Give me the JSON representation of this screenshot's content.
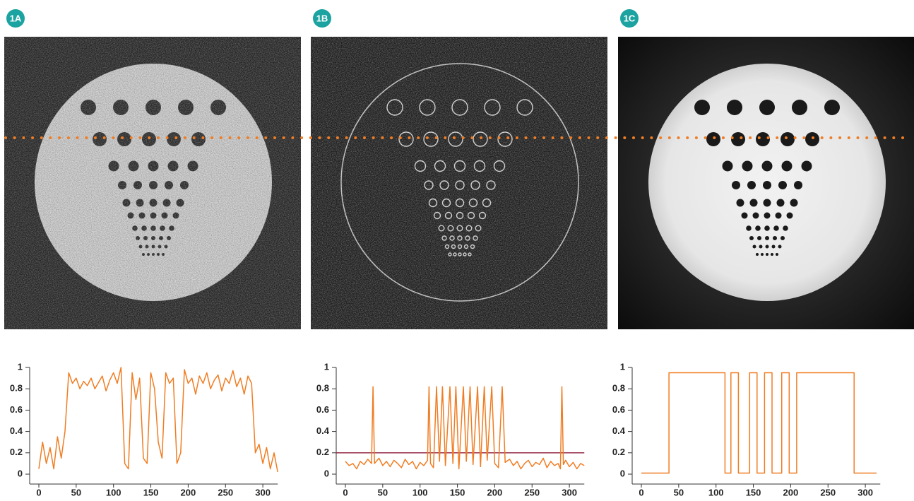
{
  "chart_data": [
    {
      "type": "line",
      "title": "1A",
      "color": "#f07d23",
      "x": [
        0,
        5,
        10,
        15,
        20,
        25,
        30,
        35,
        40,
        45,
        50,
        55,
        60,
        65,
        70,
        75,
        80,
        85,
        90,
        95,
        100,
        105,
        110,
        115,
        120,
        125,
        130,
        135,
        140,
        145,
        150,
        155,
        160,
        165,
        170,
        175,
        180,
        185,
        190,
        195,
        200,
        205,
        210,
        215,
        220,
        225,
        230,
        235,
        240,
        245,
        250,
        255,
        260,
        265,
        270,
        275,
        280,
        285,
        290,
        295,
        300,
        305,
        310,
        315,
        320
      ],
      "values": [
        0.05,
        0.3,
        0.1,
        0.25,
        0.05,
        0.35,
        0.15,
        0.4,
        0.95,
        0.85,
        0.9,
        0.8,
        0.87,
        0.83,
        0.9,
        0.8,
        0.86,
        0.92,
        0.78,
        0.88,
        0.95,
        0.85,
        1.0,
        0.1,
        0.05,
        0.95,
        0.7,
        0.9,
        0.15,
        0.1,
        0.95,
        0.8,
        0.3,
        0.15,
        0.95,
        0.85,
        0.9,
        0.1,
        0.2,
        0.98,
        0.85,
        0.9,
        0.75,
        0.92,
        0.85,
        0.95,
        0.8,
        0.88,
        0.93,
        0.78,
        0.9,
        0.85,
        0.97,
        0.82,
        0.9,
        0.75,
        0.92,
        0.85,
        0.2,
        0.28,
        0.1,
        0.25,
        0.05,
        0.2,
        0.02
      ],
      "xlim": [
        0,
        320
      ],
      "ylim": [
        0,
        1
      ],
      "xticks": [
        0,
        50,
        100,
        150,
        200,
        250,
        300
      ],
      "yticks": [
        0,
        0.2,
        0.4,
        0.6,
        0.8,
        1
      ]
    },
    {
      "type": "line",
      "title": "1B",
      "color": "#f07d23",
      "threshold": 0.2,
      "threshold_color": "#8b1a3a",
      "x": [
        0,
        5,
        10,
        15,
        20,
        25,
        30,
        35,
        37,
        39,
        45,
        50,
        55,
        60,
        65,
        70,
        75,
        80,
        85,
        90,
        95,
        100,
        105,
        110,
        112,
        114,
        118,
        122,
        126,
        130,
        134,
        140,
        144,
        148,
        152,
        158,
        162,
        167,
        171,
        177,
        181,
        186,
        190,
        196,
        200,
        205,
        210,
        214,
        220,
        225,
        230,
        235,
        240,
        245,
        250,
        255,
        260,
        265,
        270,
        275,
        280,
        285,
        288,
        290,
        292,
        295,
        300,
        305,
        310,
        315,
        320
      ],
      "values": [
        0.12,
        0.08,
        0.1,
        0.05,
        0.12,
        0.09,
        0.14,
        0.1,
        0.82,
        0.1,
        0.15,
        0.08,
        0.12,
        0.07,
        0.13,
        0.1,
        0.06,
        0.14,
        0.09,
        0.12,
        0.05,
        0.11,
        0.08,
        0.13,
        0.82,
        0.1,
        0.06,
        0.82,
        0.12,
        0.82,
        0.08,
        0.82,
        0.1,
        0.82,
        0.05,
        0.82,
        0.12,
        0.82,
        0.09,
        0.82,
        0.07,
        0.82,
        0.13,
        0.82,
        0.1,
        0.06,
        0.82,
        0.11,
        0.14,
        0.08,
        0.12,
        0.05,
        0.1,
        0.13,
        0.07,
        0.11,
        0.09,
        0.15,
        0.06,
        0.12,
        0.08,
        0.1,
        0.05,
        0.82,
        0.09,
        0.13,
        0.07,
        0.11,
        0.05,
        0.1,
        0.08
      ],
      "xlim": [
        0,
        320
      ],
      "ylim": [
        0,
        1
      ],
      "xticks": [
        0,
        50,
        100,
        150,
        200,
        250,
        300
      ],
      "yticks": [
        0,
        0.2,
        0.4,
        0.6,
        0.8,
        1
      ]
    },
    {
      "type": "line",
      "title": "1C",
      "color": "#f07d23",
      "x": [
        0,
        37,
        37,
        112,
        112,
        120,
        120,
        130,
        130,
        145,
        145,
        155,
        155,
        165,
        165,
        175,
        175,
        188,
        188,
        198,
        198,
        208,
        208,
        285,
        285,
        315
      ],
      "values": [
        0.01,
        0.01,
        0.95,
        0.95,
        0.01,
        0.01,
        0.95,
        0.95,
        0.01,
        0.01,
        0.95,
        0.95,
        0.01,
        0.01,
        0.95,
        0.95,
        0.01,
        0.01,
        0.95,
        0.95,
        0.01,
        0.01,
        0.95,
        0.95,
        0.01,
        0.01
      ],
      "xlim": [
        0,
        320
      ],
      "ylim": [
        0,
        1
      ],
      "xticks": [
        0,
        50,
        100,
        150,
        200,
        250,
        300
      ],
      "yticks": [
        0,
        0.2,
        0.4,
        0.6,
        0.8,
        1
      ]
    }
  ]
}
